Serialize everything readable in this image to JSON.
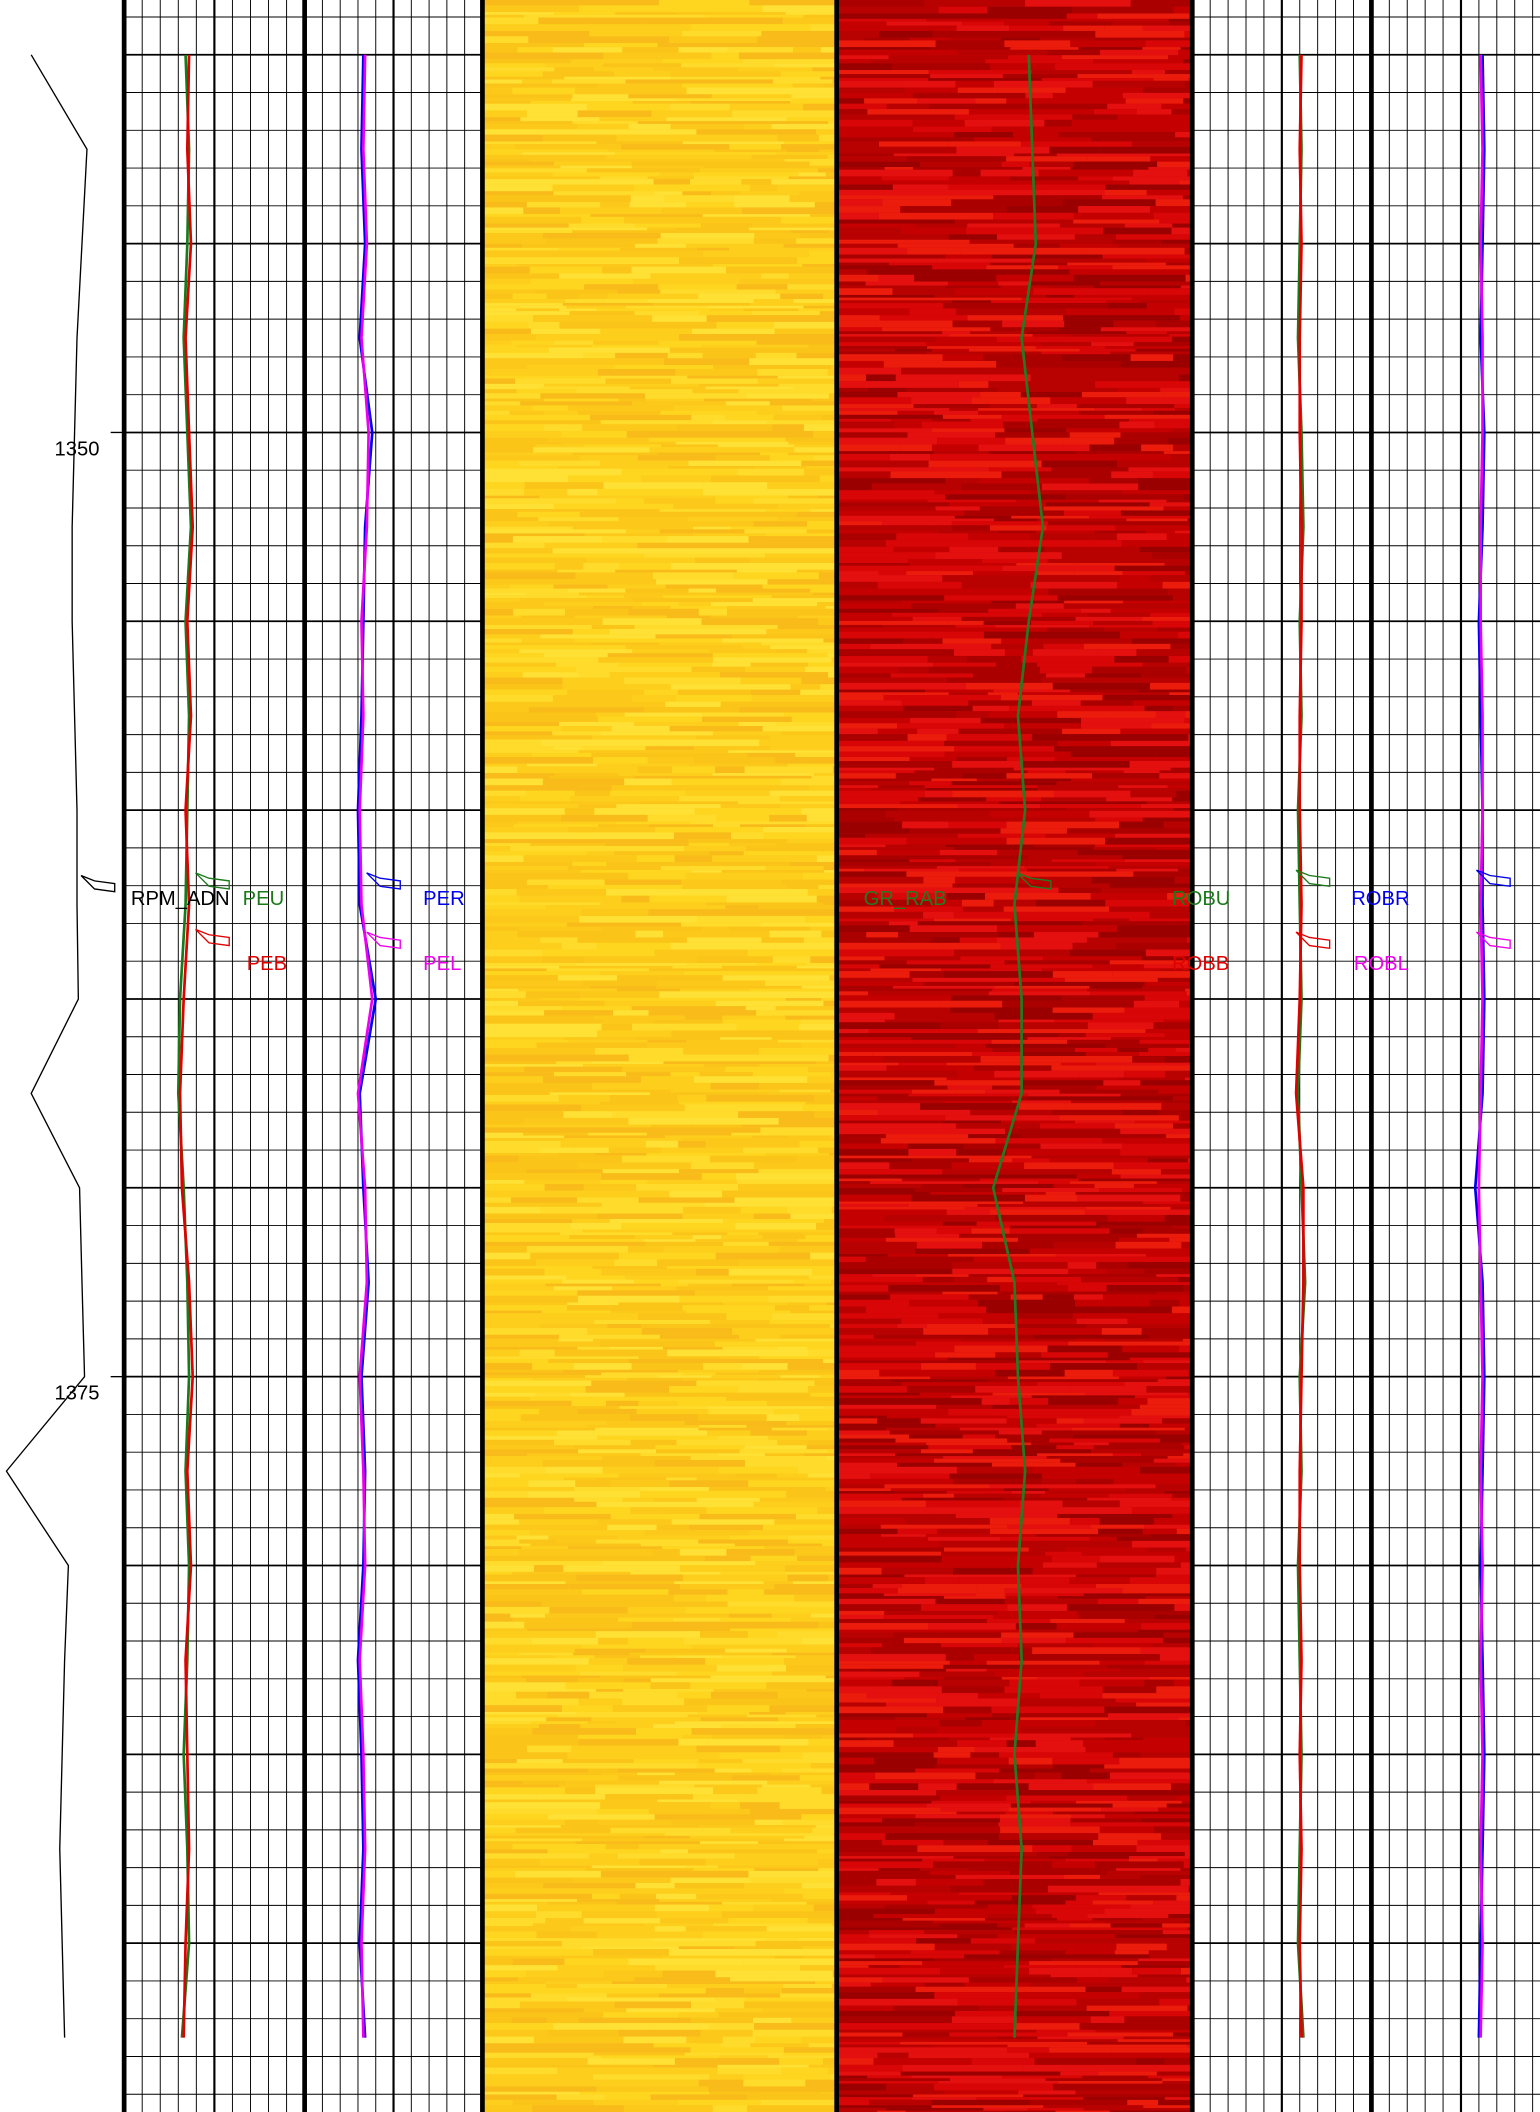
{
  "chart_data": {
    "type": "well-log",
    "ylim": [
      1338.55,
      1394.47
    ],
    "yticks": [
      1350,
      1375
    ],
    "grid": {
      "major": 5,
      "minor": 1
    },
    "depth": [
      1340,
      1342.5,
      1345,
      1347.5,
      1350,
      1352.5,
      1355,
      1357.5,
      1360,
      1362.5,
      1365,
      1367.5,
      1370,
      1372.5,
      1375,
      1377.5,
      1380,
      1382.5,
      1385,
      1387.5,
      1390,
      1392.5
    ],
    "series": [
      {
        "name": "RPM_ADN",
        "color": "#000000",
        "values": [
          25,
          70,
          66,
          62,
          60,
          58,
          58,
          60,
          62,
          62,
          63,
          25,
          64,
          66,
          68,
          5,
          55,
          52,
          50,
          48,
          50,
          52
        ]
      },
      {
        "name": "PEU",
        "color": "#1a7a1a",
        "values": [
          34,
          36,
          35,
          33,
          35,
          37,
          34,
          36,
          35,
          34,
          31,
          30,
          33,
          35,
          36,
          34,
          36,
          35,
          33,
          35,
          36,
          32
        ]
      },
      {
        "name": "PEB",
        "color": "#e00000",
        "values": [
          36,
          35,
          37,
          34,
          36,
          38,
          35,
          37,
          34,
          36,
          33,
          31,
          32,
          36,
          38,
          35,
          37,
          34,
          35,
          36,
          34,
          33
        ]
      },
      {
        "name": "PER",
        "color": "#0000ee",
        "values": [
          33,
          32,
          34,
          31,
          38,
          34,
          33,
          32,
          30,
          31,
          40,
          31,
          33,
          36,
          32,
          34,
          33,
          30,
          32,
          33,
          31,
          34
        ]
      },
      {
        "name": "PEL",
        "color": "#ee00ee",
        "values": [
          34,
          33,
          35,
          32,
          36,
          35,
          32,
          33,
          31,
          32,
          38,
          30,
          34,
          35,
          31,
          33,
          34,
          31,
          33,
          34,
          32,
          33
        ]
      },
      {
        "name": "GR_RAB",
        "color": "#237a23",
        "values": [
          54,
          55,
          56,
          52,
          55,
          58,
          54,
          51,
          53,
          50,
          52,
          52,
          44,
          50,
          51,
          53,
          51,
          52,
          50,
          52,
          51,
          50
        ]
      },
      {
        "name": "ROBU",
        "color": "#1a7a1a",
        "values": [
          60,
          61,
          60,
          59,
          61,
          62,
          60,
          61,
          59,
          60,
          61,
          59,
          61,
          63,
          60,
          61,
          59,
          60,
          61,
          60,
          59,
          62
        ]
      },
      {
        "name": "ROBB",
        "color": "#e00000",
        "values": [
          61,
          60,
          61,
          60,
          60,
          61,
          61,
          60,
          60,
          61,
          60,
          58,
          62,
          62,
          61,
          60,
          60,
          61,
          60,
          61,
          60,
          61
        ]
      },
      {
        "name": "ROBR",
        "color": "#0000ee",
        "values": [
          62,
          63,
          62,
          61,
          63,
          62,
          60,
          61,
          62,
          62,
          63,
          62,
          58,
          62,
          63,
          62,
          61,
          62,
          63,
          62,
          61,
          60
        ]
      },
      {
        "name": "ROBL",
        "color": "#ee00ee",
        "values": [
          61,
          62,
          61,
          62,
          62,
          61,
          61,
          62,
          62,
          61,
          62,
          61,
          60,
          61,
          62,
          61,
          62,
          61,
          62,
          61,
          62,
          61
        ]
      }
    ]
  }
}
